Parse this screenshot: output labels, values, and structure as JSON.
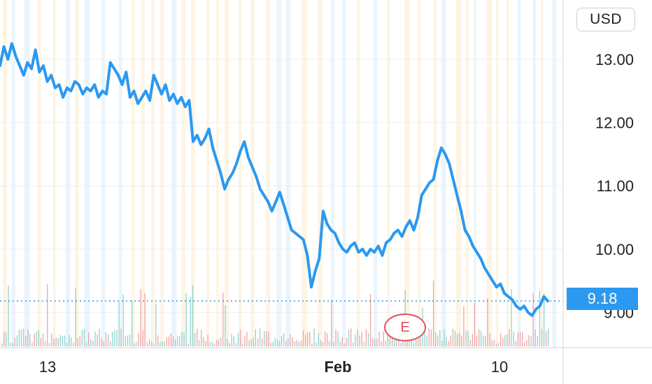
{
  "currency": "USD",
  "last_price": "9.18",
  "earnings_marker": "E",
  "colors": {
    "line": "#2b99f0",
    "price_tag": "#2b99f0",
    "volume_up": "#8fd3cf",
    "volume_down": "#f2a3a3",
    "earnings": "#e0505e",
    "band_orange": "#fdf1dc",
    "band_blue": "#e6f1fb"
  },
  "chart_data": {
    "type": "line",
    "title": "",
    "xlabel": "",
    "ylabel": "",
    "ylim": [
      8.4,
      13.7
    ],
    "y_ticks": [
      {
        "value": 13,
        "label": "13.00"
      },
      {
        "value": 12,
        "label": "12.00"
      },
      {
        "value": 11,
        "label": "11.00"
      },
      {
        "value": 10,
        "label": "10.00"
      },
      {
        "value": 9,
        "label": "9.00"
      }
    ],
    "x_ticks": [
      {
        "label": "13",
        "bold": false
      },
      {
        "label": "Feb",
        "bold": true
      },
      {
        "label": "10",
        "bold": false
      }
    ],
    "grid": true,
    "last_value": 9.18,
    "series": [
      {
        "values": [
          12.9,
          13.2,
          13.0,
          13.25,
          13.05,
          12.9,
          12.75,
          12.95,
          12.85,
          13.15,
          12.8,
          12.9,
          12.65,
          12.75,
          12.55,
          12.6,
          12.4,
          12.55,
          12.5,
          12.65,
          12.6,
          12.45,
          12.55,
          12.5,
          12.6,
          12.4,
          12.5,
          12.45,
          12.95,
          12.85,
          12.75,
          12.6,
          12.8,
          12.4,
          12.5,
          12.3,
          12.4,
          12.5,
          12.35,
          12.75,
          12.6,
          12.45,
          12.6,
          12.35,
          12.45,
          12.3,
          12.4,
          12.25,
          12.35,
          11.7,
          11.8,
          11.65,
          11.75,
          11.9,
          11.6,
          11.4,
          11.2,
          10.95,
          11.1,
          11.2,
          11.35,
          11.55,
          11.7,
          11.45,
          11.3,
          11.15,
          10.95,
          10.85,
          10.75,
          10.6,
          10.75,
          10.9,
          10.7,
          10.5,
          10.3,
          10.25,
          10.2,
          10.15,
          9.9,
          9.4,
          9.65,
          9.85,
          10.6,
          10.4,
          10.3,
          10.25,
          10.1,
          10.0,
          9.95,
          10.05,
          10.1,
          9.95,
          10.0,
          9.9,
          10.0,
          9.95,
          10.05,
          9.9,
          10.1,
          10.15,
          10.25,
          10.3,
          10.2,
          10.35,
          10.45,
          10.3,
          10.5,
          10.85,
          10.95,
          11.05,
          11.1,
          11.4,
          11.6,
          11.5,
          11.35,
          11.1,
          10.85,
          10.6,
          10.3,
          10.2,
          10.05,
          9.95,
          9.85,
          9.7,
          9.6,
          9.5,
          9.4,
          9.45,
          9.3,
          9.25,
          9.2,
          9.1,
          9.05,
          9.1,
          9.0,
          8.95,
          9.05,
          9.1,
          9.25,
          9.18
        ]
      }
    ]
  }
}
